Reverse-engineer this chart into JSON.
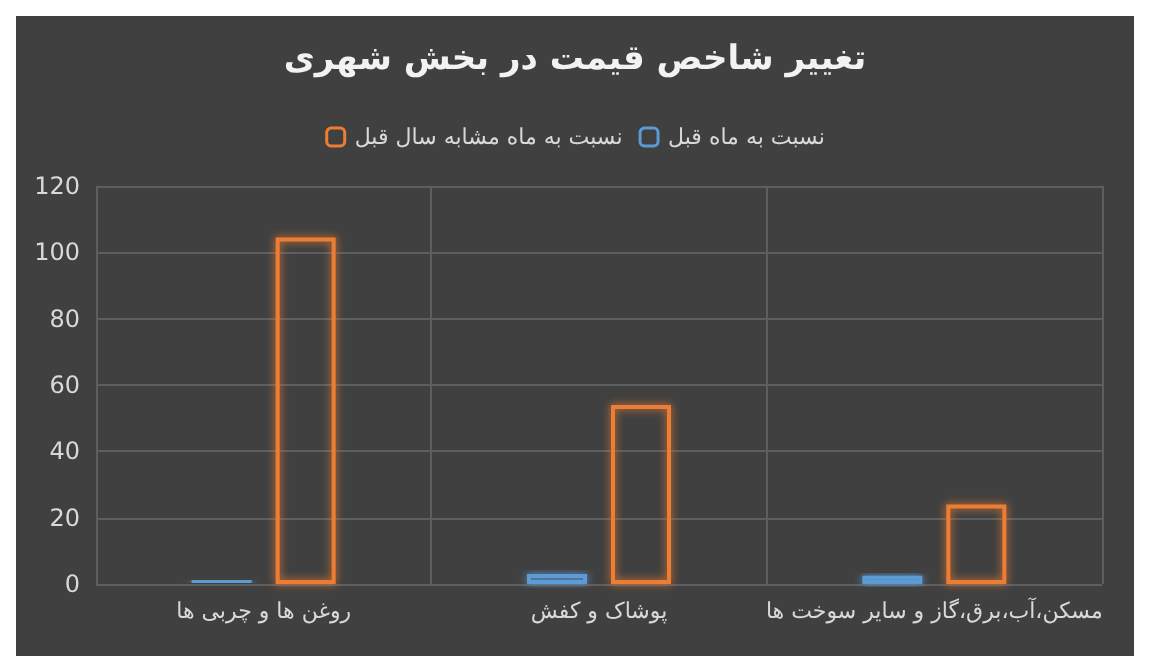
{
  "chart_data": {
    "type": "bar",
    "title": "تغییر شاخص قیمت در بخش شهری",
    "categories": [
      "روغن ها و چربی ها",
      "پوشاک و کفش",
      "مسکن،آب،برق،گاز و سایر سوخت ها"
    ],
    "series": [
      {
        "name": "نسبت به ماه قبل",
        "color": "#5b9bd5",
        "values": [
          1.5,
          3,
          2.5
        ]
      },
      {
        "name": "نسبت به ماه مشابه سال قبل",
        "color": "#ed7d31",
        "values": [
          104.5,
          54,
          24
        ]
      }
    ],
    "ylim": [
      0,
      120
    ],
    "yticks": [
      0,
      20,
      40,
      60,
      80,
      100,
      120
    ],
    "grid": true,
    "legend": "top"
  }
}
